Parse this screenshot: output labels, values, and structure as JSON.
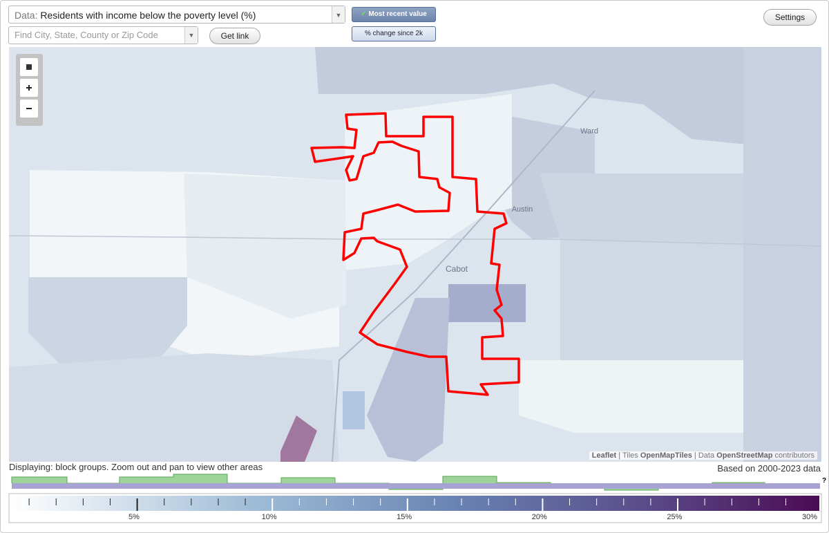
{
  "data_select": {
    "prefix": "Data:",
    "value": "Residents with income below the poverty level (%)"
  },
  "search": {
    "placeholder": "Find City, State, County or Zip Code"
  },
  "buttons": {
    "get_link": "Get link",
    "most_recent": "Most recent value",
    "percent_change": "% change since 2k",
    "settings": "Settings"
  },
  "map": {
    "labels": [
      "Ward",
      "Austin",
      "Cabot"
    ],
    "attribution": [
      "Leaflet",
      "|",
      "Tiles",
      "OpenMapTiles",
      "|",
      "Data",
      "OpenStreetMap",
      "contributors"
    ]
  },
  "status": {
    "displaying": "Displaying: block groups. Zoom out and pan to view other areas",
    "based_on": "Based on 2000-2023 data"
  },
  "legend": {
    "ticks": [
      "5%",
      "10%",
      "15%",
      "20%",
      "25%",
      "30%"
    ],
    "unknown": "?"
  }
}
